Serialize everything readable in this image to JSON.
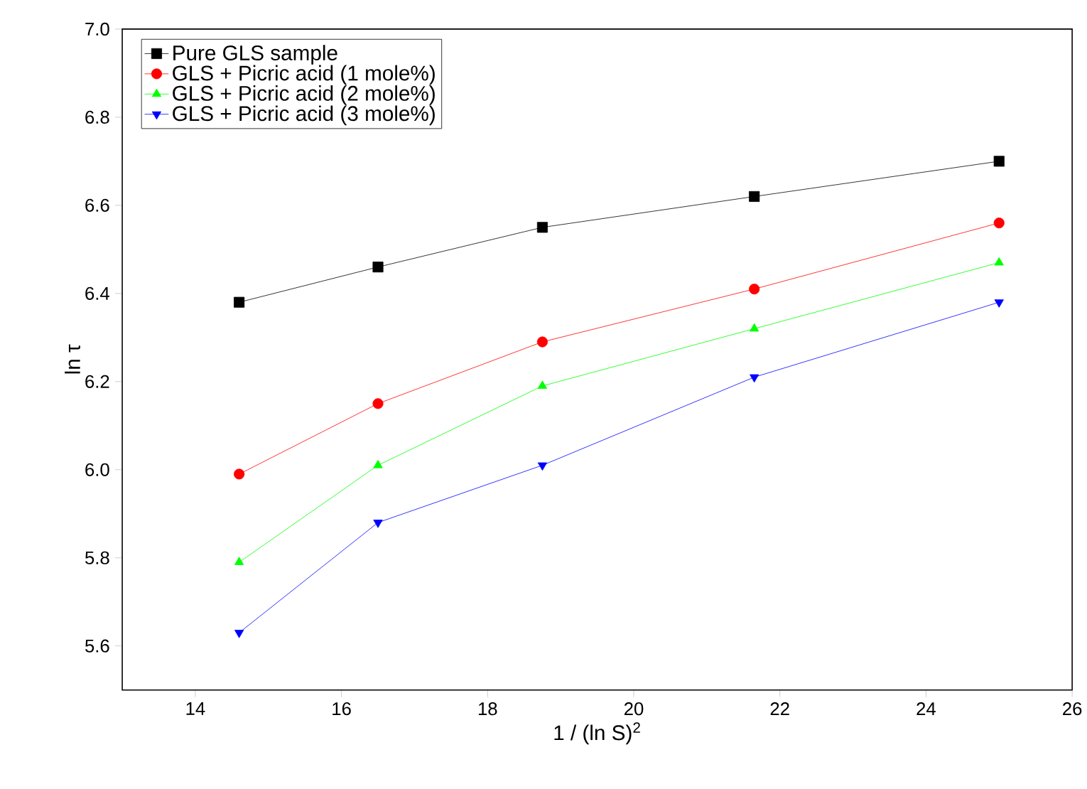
{
  "chart_data": {
    "type": "line",
    "xlabel": "1 / (ln S)$^{2}$",
    "ylabel": "ln τ",
    "x": [
      14.6,
      16.5,
      18.75,
      21.65,
      25
    ],
    "series": [
      {
        "name": "Pure GLS sample",
        "color": "#000000",
        "marker": "square",
        "values": [
          6.38,
          6.46,
          6.55,
          6.62,
          6.7
        ]
      },
      {
        "name": "GLS + Picric acid (1 mole%)",
        "color": "#ff0000",
        "marker": "circle",
        "values": [
          5.99,
          6.15,
          6.29,
          6.41,
          6.56
        ]
      },
      {
        "name": "GLS + Picric acid (2 mole%)",
        "color": "#00ff00",
        "marker": "triangle",
        "values": [
          5.79,
          6.01,
          6.19,
          6.32,
          6.47
        ]
      },
      {
        "name": "GLS + Picric acid (3 mole%)",
        "color": "#0000ff",
        "marker": "triangle-down",
        "values": [
          5.63,
          5.88,
          6.01,
          6.21,
          6.38
        ]
      }
    ],
    "xlim": [
      13,
      26
    ],
    "xticks": [
      14,
      16,
      18,
      20,
      22,
      24,
      26
    ],
    "ylim": [
      5.5,
      7.0
    ],
    "yticks": [
      5.6,
      5.8,
      {
        "value": 6,
        "label": "6.0"
      },
      6.2,
      6.4,
      6.6,
      6.8,
      {
        "value": 7,
        "label": "7.0"
      }
    ],
    "grid": false,
    "legend": "top left",
    "line_style": "solid"
  }
}
